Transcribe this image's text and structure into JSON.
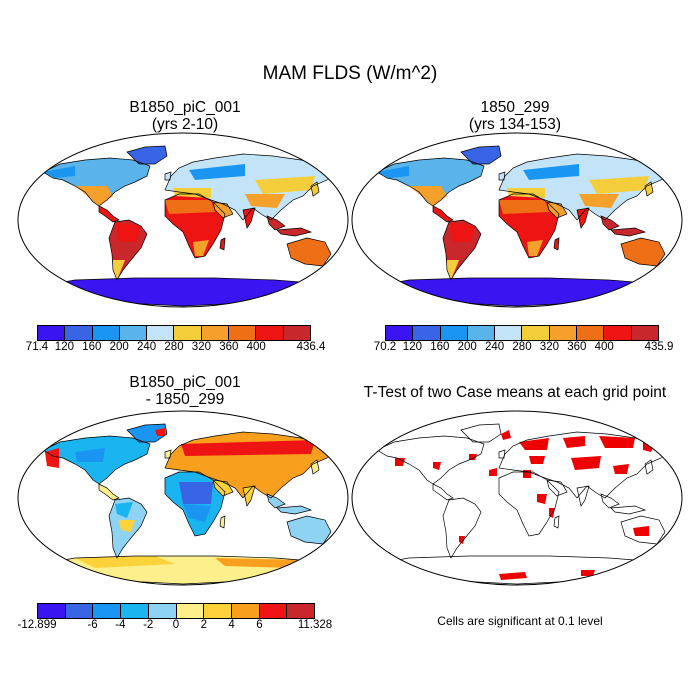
{
  "title": "MAM FLDS (W/m^2)",
  "panels": [
    {
      "id": "p1",
      "title_line1": "B1850_piC_001",
      "title_line2": "(yrs 2-10)",
      "kind": "mean"
    },
    {
      "id": "p2",
      "title_line1": "1850_299",
      "title_line2": "(yrs 134-153)",
      "kind": "mean"
    },
    {
      "id": "p3",
      "title_line1": "B1850_piC_001",
      "title_line2": "- 1850_299",
      "kind": "difference"
    },
    {
      "id": "p4",
      "title_line1": "T-Test of two Case means at each grid point",
      "title_line2": "",
      "kind": "ttest"
    }
  ],
  "colorbars": [
    {
      "id": "cb1",
      "colors": [
        "#3a15f2",
        "#3a64e6",
        "#1a96f2",
        "#5ab4ea",
        "#c3e4f8",
        "#f4ce3a",
        "#f4a02a",
        "#ee6f16",
        "#ee1414",
        "#c8282c"
      ],
      "labels": [
        "71.4",
        "120",
        "160",
        "200",
        "240",
        "280",
        "320",
        "360",
        "400",
        "436.4"
      ]
    },
    {
      "id": "cb2",
      "colors": [
        "#3a15f2",
        "#3a64e6",
        "#1a96f2",
        "#5ab4ea",
        "#c3e4f8",
        "#f4ce3a",
        "#f4a02a",
        "#ee6f16",
        "#ee1414",
        "#c8282c"
      ],
      "labels": [
        "70.2",
        "120",
        "160",
        "200",
        "240",
        "280",
        "320",
        "360",
        "400",
        "435.9"
      ]
    },
    {
      "id": "cb3",
      "colors": [
        "#3a15f2",
        "#3a64e6",
        "#1a96f2",
        "#1ab4f0",
        "#8ed2f4",
        "#fdf08c",
        "#fbd23a",
        "#f8a01e",
        "#ee1414",
        "#c8282c"
      ],
      "labels": [
        "-12.899",
        "-6",
        "-4",
        "-2",
        "0",
        "2",
        "4",
        "6",
        "11.328"
      ]
    }
  ],
  "significance_note": "Cells are significant at 0.1 level",
  "significance_color": "#ee0000"
}
